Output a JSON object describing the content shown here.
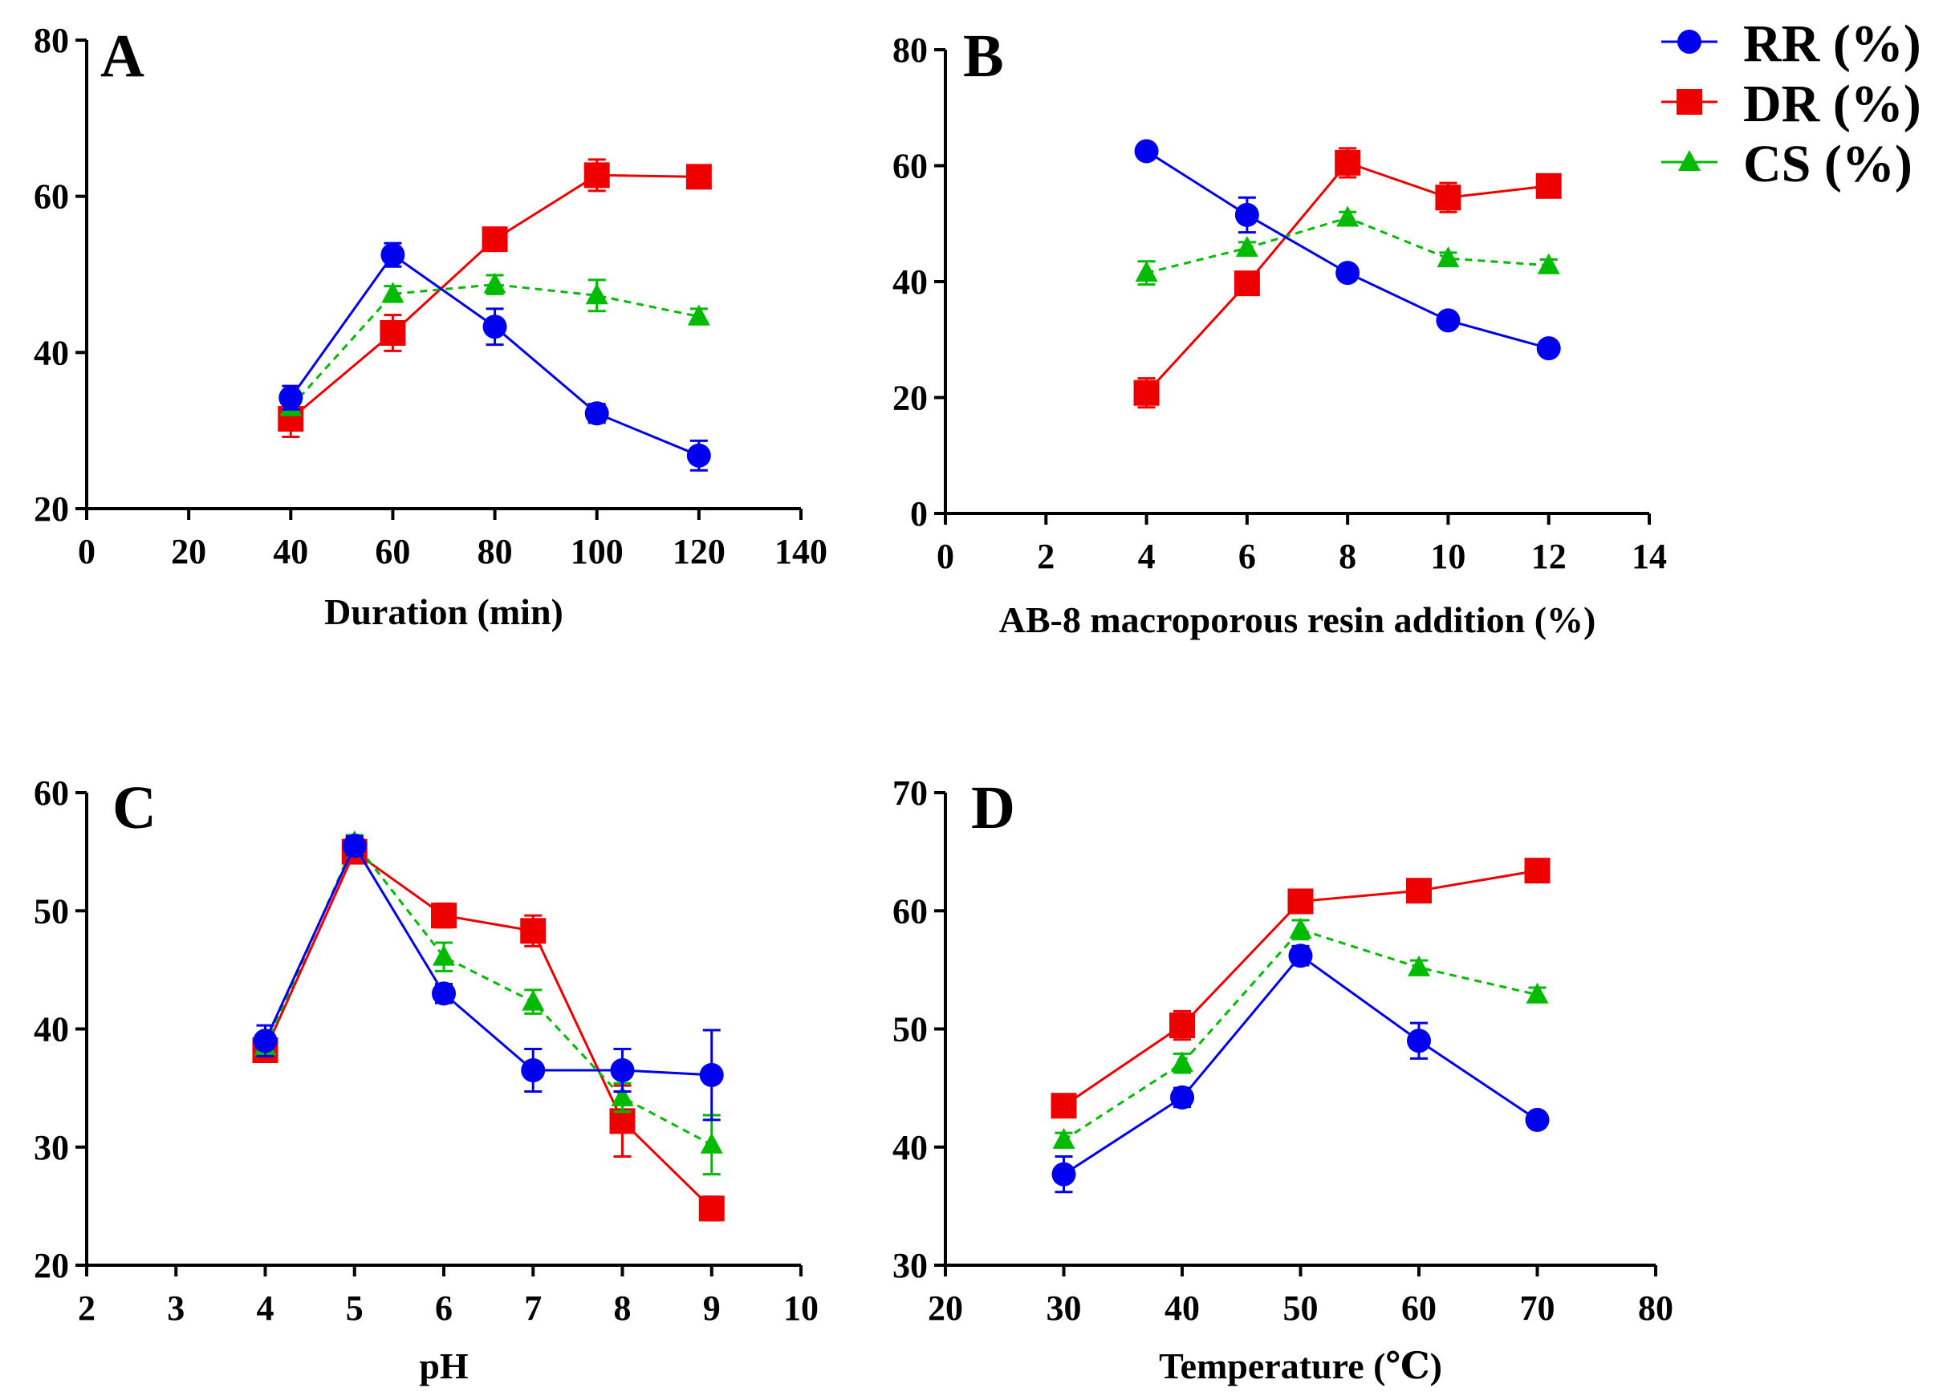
{
  "legend": [
    {
      "name": "RR (%)",
      "color": "#0000ee",
      "marker": "circle"
    },
    {
      "name": "DR (%)",
      "color": "#ee0000",
      "marker": "square"
    },
    {
      "name": "CS (%)",
      "color": "#00bb00",
      "marker": "triangle"
    }
  ],
  "chart_data": [
    {
      "panel": "A",
      "type": "line",
      "xlabel": "Duration (min)",
      "ylabel": "",
      "xlim": [
        0,
        140
      ],
      "ylim": [
        20,
        80
      ],
      "xticks": [
        0,
        20,
        40,
        60,
        80,
        100,
        120,
        140
      ],
      "yticks": [
        20,
        40,
        60,
        80
      ],
      "x": [
        40,
        60,
        80,
        100,
        120
      ],
      "series": [
        {
          "name": "RR (%)",
          "values": [
            34.2,
            52.5,
            43.3,
            32.2,
            26.8
          ],
          "errors": [
            1.5,
            1.5,
            2.3,
            1.2,
            1.9
          ]
        },
        {
          "name": "DR (%)",
          "values": [
            31.5,
            42.5,
            54.5,
            62.7,
            62.5
          ],
          "errors": [
            2.3,
            2.3,
            0.8,
            2.0,
            1.3
          ]
        },
        {
          "name": "CS (%)",
          "values": [
            33.0,
            47.5,
            48.7,
            47.3,
            44.6
          ],
          "errors": [
            1.0,
            1.0,
            1.2,
            2.0,
            1.0
          ]
        }
      ],
      "grid": false
    },
    {
      "panel": "B",
      "type": "line",
      "xlabel": "AB-8 macroporous resin addition (%)",
      "ylabel": "",
      "xlim": [
        0,
        14
      ],
      "ylim": [
        0,
        80
      ],
      "xticks": [
        0,
        2,
        4,
        6,
        8,
        10,
        12,
        14
      ],
      "yticks": [
        0,
        20,
        40,
        60,
        80
      ],
      "x": [
        4,
        6,
        8,
        10,
        12
      ],
      "series": [
        {
          "name": "RR (%)",
          "values": [
            62.5,
            51.5,
            41.5,
            33.3,
            28.5
          ],
          "errors": [
            1.0,
            3.0,
            1.2,
            1.0,
            1.0
          ]
        },
        {
          "name": "DR (%)",
          "values": [
            20.8,
            39.7,
            60.5,
            54.5,
            56.5
          ],
          "errors": [
            2.5,
            1.5,
            2.5,
            2.5,
            1.5
          ]
        },
        {
          "name": "CS (%)",
          "values": [
            41.5,
            45.8,
            51.0,
            44.0,
            42.8
          ],
          "errors": [
            2.0,
            1.0,
            1.0,
            1.0,
            1.0
          ]
        }
      ],
      "grid": false
    },
    {
      "panel": "C",
      "type": "line",
      "xlabel": "pH",
      "ylabel": "",
      "xlim": [
        2,
        10
      ],
      "ylim": [
        20,
        60
      ],
      "xticks": [
        2,
        3,
        4,
        5,
        6,
        7,
        8,
        9,
        10
      ],
      "yticks": [
        20,
        30,
        40,
        50,
        60
      ],
      "x": [
        4,
        5,
        6,
        7,
        8,
        9
      ],
      "series": [
        {
          "name": "RR (%)",
          "values": [
            39.0,
            55.5,
            43.0,
            36.5,
            36.5,
            36.1
          ],
          "errors": [
            1.3,
            0.8,
            0.8,
            1.8,
            1.8,
            3.8
          ]
        },
        {
          "name": "DR (%)",
          "values": [
            38.2,
            55.0,
            49.6,
            48.3,
            32.2,
            24.8
          ],
          "errors": [
            0.6,
            0.8,
            1.0,
            1.3,
            3.0,
            1.0
          ]
        },
        {
          "name": "CS (%)",
          "values": [
            38.5,
            55.8,
            46.1,
            42.3,
            34.2,
            30.2
          ],
          "errors": [
            0.6,
            0.6,
            1.2,
            1.0,
            1.2,
            2.5
          ]
        }
      ],
      "grid": false
    },
    {
      "panel": "D",
      "type": "line",
      "xlabel": "Temperature (℃)",
      "ylabel": "",
      "xlim": [
        20,
        80
      ],
      "ylim": [
        30,
        70
      ],
      "xticks": [
        20,
        30,
        40,
        50,
        60,
        70,
        80
      ],
      "yticks": [
        30,
        40,
        50,
        60,
        70
      ],
      "x": [
        30,
        40,
        50,
        60,
        70
      ],
      "series": [
        {
          "name": "RR (%)",
          "values": [
            37.7,
            44.2,
            56.2,
            49.0,
            42.3
          ],
          "errors": [
            1.5,
            0.8,
            0.8,
            1.5,
            0.6
          ]
        },
        {
          "name": "DR (%)",
          "values": [
            43.5,
            50.3,
            60.8,
            61.7,
            63.4
          ],
          "errors": [
            0.6,
            1.2,
            0.8,
            0.6,
            0.6
          ]
        },
        {
          "name": "CS (%)",
          "values": [
            40.6,
            47.1,
            58.4,
            55.2,
            52.9
          ],
          "errors": [
            0.6,
            0.8,
            0.8,
            0.6,
            0.6
          ]
        }
      ],
      "grid": false
    }
  ]
}
